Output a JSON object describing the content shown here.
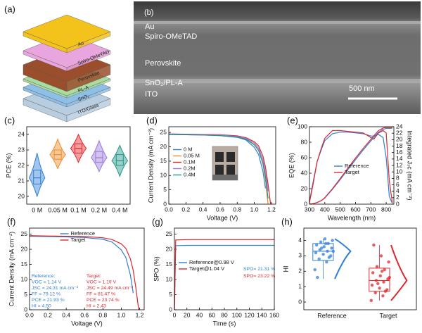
{
  "figure": {
    "a": {
      "panel": "(a)",
      "layers": [
        "Au",
        "Spiro-OMeTAD",
        "Perovskite",
        "PL-A",
        "SnO₂",
        "ITO/Glass"
      ]
    },
    "b": {
      "panel": "(b)",
      "labels": [
        "Au",
        "Spiro-OMeTAD",
        "Perovskite",
        "SnO₂/PL-A",
        "ITO"
      ],
      "scale_bar": "500 nm"
    }
  },
  "chart_data": [
    {
      "type": "violin",
      "panel": "(c)",
      "ylabel": "PCE (%)",
      "categories": [
        "0 M",
        "0.05 M",
        "0.1 M",
        "0.2 M",
        "0.4 M"
      ],
      "colors": [
        "#2f7fd6",
        "#f08a24",
        "#e0262a",
        "#9a7ad8",
        "#22958a"
      ],
      "min": [
        20.0,
        21.8,
        22.2,
        21.6,
        21.3
      ],
      "q1": [
        20.8,
        22.4,
        22.8,
        22.2,
        22.0
      ],
      "median": [
        21.2,
        22.7,
        23.1,
        22.5,
        22.3
      ],
      "q3": [
        21.7,
        23.0,
        23.4,
        22.9,
        22.7
      ],
      "max": [
        22.8,
        23.7,
        24.0,
        23.6,
        23.3
      ],
      "ylim": [
        19.5,
        24.5
      ],
      "yticks": [
        20,
        21,
        22,
        23,
        24
      ]
    },
    {
      "type": "line",
      "panel": "(d)",
      "xlabel": "Voltage (V)",
      "ylabel": "Current Density (mA cm⁻²)",
      "x": [
        0,
        0.2,
        0.4,
        0.6,
        0.8,
        0.9,
        1.0,
        1.05,
        1.1,
        1.13,
        1.16,
        1.19
      ],
      "series": [
        {
          "name": "0 M",
          "color": "#2f7fd6",
          "values": [
            24.3,
            24.2,
            24.1,
            23.9,
            23.3,
            22.4,
            19.8,
            17.3,
            11.5,
            5.5,
            null,
            null
          ]
        },
        {
          "name": "0.05 M",
          "color": "#f08a24",
          "values": [
            24.4,
            24.3,
            24.2,
            24.0,
            23.5,
            22.8,
            20.8,
            18.8,
            14.0,
            8.5,
            0,
            null
          ]
        },
        {
          "name": "0.1M",
          "color": "#e0262a",
          "values": [
            24.5,
            24.4,
            24.3,
            24.2,
            23.8,
            23.2,
            21.8,
            20.3,
            16.8,
            13.0,
            7.0,
            0
          ]
        },
        {
          "name": "0.2M",
          "color": "#9a7ad8",
          "values": [
            24.4,
            24.3,
            24.2,
            24.1,
            23.6,
            23.0,
            21.3,
            19.5,
            15.5,
            11.0,
            4.5,
            null
          ]
        },
        {
          "name": "0.4M",
          "color": "#22958a",
          "values": [
            24.3,
            24.2,
            24.1,
            23.9,
            23.4,
            22.7,
            20.7,
            18.7,
            14.3,
            9.5,
            2.0,
            null
          ]
        }
      ],
      "xlim": [
        0,
        1.25
      ],
      "xticks": [
        {
          "value": 0,
          "label": "0.0"
        },
        0.2,
        0.4,
        0.6,
        0.8,
        {
          "value": 1,
          "label": "1.0"
        },
        1.2
      ],
      "ylim": [
        0,
        27
      ],
      "yticks": [
        0,
        5,
        10,
        15,
        20,
        25
      ],
      "legend": "center left"
    },
    {
      "type": "line",
      "panel": "(e)",
      "xlabel": "Wavelength (nm)",
      "ylabel": "EQE (%)",
      "y2label": "Integrated Jₛc (mA cm⁻²)",
      "x": [
        300,
        320,
        350,
        380,
        400,
        450,
        500,
        550,
        600,
        650,
        700,
        720,
        750,
        780,
        800,
        820,
        840
      ],
      "series": [
        {
          "name": "Reference",
          "color": "#2f7fd6",
          "values": [
            3,
            25,
            55,
            72,
            82,
            91,
            93,
            93,
            92,
            91,
            88,
            88,
            90,
            86,
            60,
            10,
            1
          ]
        },
        {
          "name": "Target",
          "color": "#e0262a",
          "values": [
            2,
            22,
            55,
            74,
            85,
            95,
            95,
            94,
            93,
            92,
            86,
            84,
            92,
            95,
            92,
            30,
            2
          ]
        },
        {
          "color": "#2f7fd6",
          "axis": "y2",
          "values": [
            0,
            0.1,
            0.5,
            1.2,
            1.9,
            4.6,
            7.6,
            10.7,
            13.8,
            16.8,
            19.6,
            20.7,
            22.3,
            23.2,
            23.5,
            23.5,
            23.5
          ]
        },
        {
          "color": "#e0262a",
          "axis": "y2",
          "values": [
            0,
            0.1,
            0.5,
            1.2,
            2.0,
            4.8,
            7.9,
            11.1,
            14.3,
            17.3,
            20.1,
            21.2,
            22.8,
            23.6,
            23.8,
            23.8,
            23.8
          ]
        }
      ],
      "xlim": [
        300,
        850
      ],
      "xticks": [
        300,
        400,
        500,
        600,
        700,
        800
      ],
      "ylim": [
        0,
        100
      ],
      "yticks": [
        0,
        20,
        40,
        60,
        80,
        100
      ],
      "y2lim": [
        0,
        24
      ],
      "y2ticks": [
        0,
        2,
        4,
        6,
        8,
        10,
        12,
        14,
        16,
        18,
        20,
        22,
        24
      ],
      "legend": "center"
    },
    {
      "type": "line",
      "panel": "(f)",
      "xlabel": "Voltage (V)",
      "ylabel": "Current Density (mA cm⁻²)",
      "x": [
        0,
        0.2,
        0.4,
        0.6,
        0.8,
        0.9,
        1.0,
        1.05,
        1.1,
        1.13,
        1.16,
        1.19
      ],
      "series": [
        {
          "name": "Reference",
          "color": "#2f7fd6",
          "values": [
            24.3,
            24.2,
            24.1,
            23.9,
            23.3,
            22.4,
            19.8,
            17.3,
            11.5,
            5.5,
            null,
            null
          ]
        },
        {
          "name": "Target",
          "color": "#e0262a",
          "values": [
            24.5,
            24.4,
            24.3,
            24.2,
            23.8,
            23.2,
            21.8,
            20.3,
            16.8,
            13.0,
            7.0,
            0
          ]
        }
      ],
      "annotations": [
        {
          "color": "#2f7fd6",
          "lines": [
            "Reference:",
            "VOC = 1.14 V",
            "JSC = 24.31 mA cm⁻²",
            "FF = 79.12 %",
            "PCE = 21.93 %",
            "HI = 4.50"
          ]
        },
        {
          "color": "#e0262a",
          "lines": [
            "Target:",
            "VOC = 1.19 V",
            "JSC = 24.49 mA cm⁻²",
            "FF = 81.47 %",
            "PCE = 23.74 %",
            "HI = 2.43"
          ]
        }
      ],
      "xlim": [
        0,
        1.25
      ],
      "xticks": [
        {
          "value": 0,
          "label": "0.0"
        },
        0.2,
        0.4,
        0.6,
        0.8,
        {
          "value": 1,
          "label": "1.0"
        },
        1.2
      ],
      "ylim": [
        0,
        27
      ],
      "yticks": [
        0,
        5,
        10,
        15,
        20,
        25
      ],
      "legend": "upper center"
    },
    {
      "type": "line",
      "panel": "(g)",
      "xlabel": "Time (s)",
      "ylabel": "SPO (%)",
      "x": [
        0,
        2,
        20,
        40,
        60,
        80,
        100,
        120,
        140,
        160
      ],
      "series": [
        {
          "name": "Reference@0.98 V",
          "color": "#2f7fd6",
          "values": [
            0,
            21.2,
            21.3,
            21.3,
            21.3,
            21.3,
            21.3,
            21.3,
            21.3,
            21.3
          ]
        },
        {
          "name": "Target@1.04 V",
          "color": "#e0262a",
          "values": [
            0,
            23.1,
            23.2,
            23.2,
            23.2,
            23.2,
            23.2,
            23.2,
            23.2,
            23.2
          ]
        }
      ],
      "annotations": [
        {
          "color": "#2f7fd6",
          "lines": [
            "SPO= 21.31 %"
          ]
        },
        {
          "color": "#e0262a",
          "lines": [
            "SPO= 23.22 %"
          ]
        }
      ],
      "xlim": [
        0,
        160
      ],
      "xticks": [
        0,
        20,
        40,
        60,
        80,
        100,
        120,
        140,
        160
      ],
      "ylim": [
        0,
        27
      ],
      "yticks": [
        0,
        5,
        10,
        15,
        20,
        25
      ],
      "legend": "center left"
    },
    {
      "type": "box",
      "panel": "(h)",
      "ylabel": "HI",
      "categories": [
        "Reference",
        "Target"
      ],
      "colors": [
        "#2f7fd6",
        "#e0262a"
      ],
      "min": [
        1.5,
        0.1
      ],
      "q1": [
        2.7,
        0.7
      ],
      "median": [
        3.3,
        1.4
      ],
      "q3": [
        3.8,
        2.2
      ],
      "max": [
        4.1,
        3.7
      ],
      "points": [
        [
          2.1,
          2.6,
          2.8,
          3.0,
          3.1,
          3.2,
          3.3,
          3.4,
          3.5,
          3.6,
          3.7,
          3.8,
          3.9,
          4.0,
          4.1,
          1.6,
          2.9,
          3.5,
          3.3,
          3.8
        ],
        [
          0.1,
          0.4,
          0.6,
          0.8,
          0.9,
          1.1,
          1.3,
          1.4,
          1.5,
          1.7,
          1.9,
          2.1,
          2.3,
          2.6,
          3.0,
          3.7,
          0.7,
          1.2,
          1.6,
          2.0
        ]
      ],
      "ylim": [
        -0.5,
        4.8
      ],
      "yticks": [
        0,
        1,
        2,
        3,
        4
      ]
    }
  ]
}
